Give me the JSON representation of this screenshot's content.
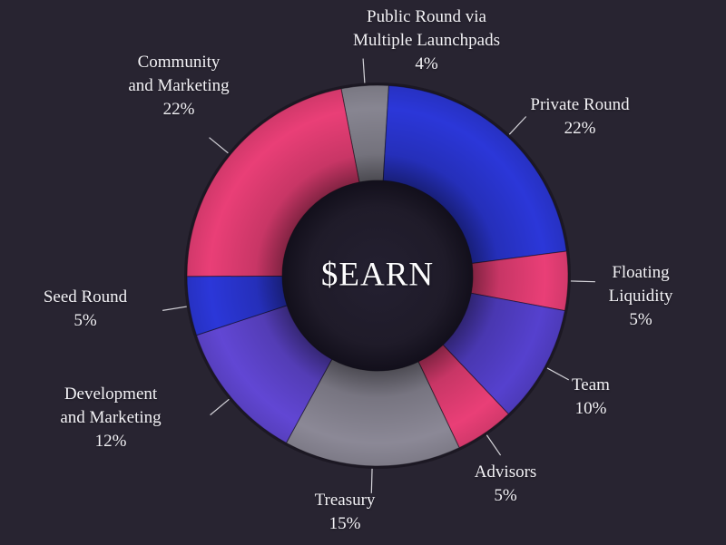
{
  "chart_data": {
    "type": "pie",
    "subtype": "donut",
    "center_label": "$EARN",
    "legend": "none",
    "start_angle_deg": -11,
    "background_color": "#282431",
    "segments": [
      {
        "id": "public-round",
        "lines": [
          "Public Round via",
          "Multiple Launchpads"
        ],
        "pct": "4%",
        "value": 4,
        "color": "#8a8894"
      },
      {
        "id": "private-round",
        "lines": [
          "Private Round"
        ],
        "pct": "22%",
        "value": 22,
        "color": "#2c38dd"
      },
      {
        "id": "floating-liquidity",
        "lines": [
          "Floating",
          "Liquidity"
        ],
        "pct": "5%",
        "value": 5,
        "color": "#ee4079"
      },
      {
        "id": "team",
        "lines": [
          "Team"
        ],
        "pct": "10%",
        "value": 10,
        "color": "#5742d2"
      },
      {
        "id": "advisors",
        "lines": [
          "Advisors"
        ],
        "pct": "5%",
        "value": 5,
        "color": "#ee4079"
      },
      {
        "id": "treasury",
        "lines": [
          "Treasury"
        ],
        "pct": "15%",
        "value": 15,
        "color": "#8e8b99"
      },
      {
        "id": "development-marketing",
        "lines": [
          "Development",
          "and Marketing"
        ],
        "pct": "12%",
        "value": 12,
        "color": "#6348d8"
      },
      {
        "id": "seed-round",
        "lines": [
          "Seed Round"
        ],
        "pct": "5%",
        "value": 5,
        "color": "#2c38dd"
      },
      {
        "id": "community-marketing",
        "lines": [
          "Community",
          "and Marketing"
        ],
        "pct": "22%",
        "value": 22,
        "color": "#ee4079"
      }
    ]
  }
}
